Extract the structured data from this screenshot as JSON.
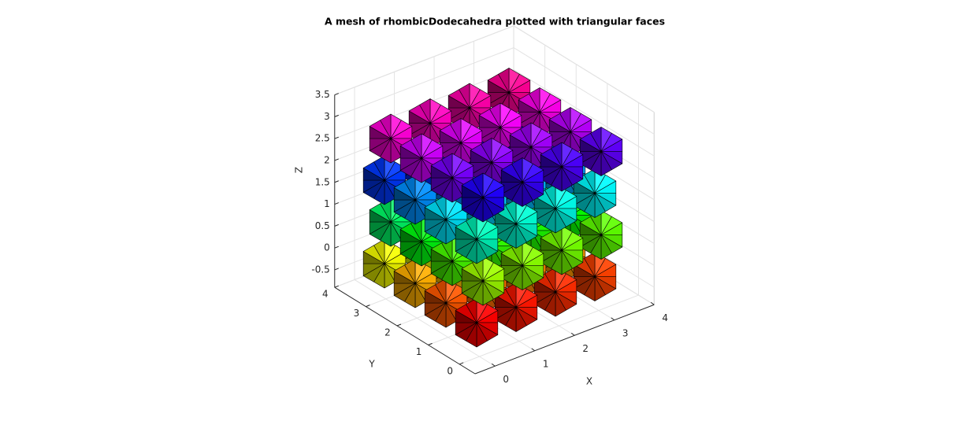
{
  "chart_data": {
    "type": "mesh3d",
    "title": "A mesh of rhombicDodecahedra plotted with triangular faces",
    "xlabel": "X",
    "ylabel": "Y",
    "zlabel": "Z",
    "xlim": [
      -0.5,
      4
    ],
    "ylim": [
      -0.5,
      4
    ],
    "zlim": [
      -0.9,
      3.5
    ],
    "xticks": [
      0,
      1,
      2,
      3,
      4
    ],
    "yticks": [
      0,
      1,
      2,
      3,
      4
    ],
    "zticks": [
      -0.5,
      0,
      0.5,
      1,
      1.5,
      2,
      2.5,
      3,
      3.5
    ],
    "grid": true
  }
}
